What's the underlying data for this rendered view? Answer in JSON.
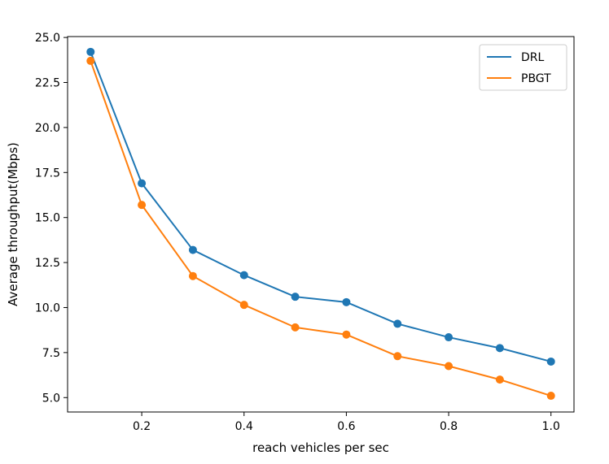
{
  "chart_data": {
    "type": "line",
    "x": [
      0.1,
      0.2,
      0.3,
      0.4,
      0.5,
      0.6,
      0.7,
      0.8,
      0.9,
      1.0
    ],
    "series": [
      {
        "name": "DRL",
        "color": "#1f77b4",
        "values": [
          24.2,
          16.9,
          13.2,
          11.8,
          10.6,
          10.3,
          9.1,
          8.35,
          7.75,
          7.0
        ]
      },
      {
        "name": "PBGT",
        "color": "#ff7f0e",
        "values": [
          23.7,
          15.7,
          11.75,
          10.15,
          8.9,
          8.5,
          7.3,
          6.75,
          6.0,
          5.1
        ]
      }
    ],
    "xlabel": "reach vehicles per sec",
    "ylabel": "Average throughput(Mbps)",
    "xlim": [
      0.055,
      1.045
    ],
    "ylim": [
      4.2,
      25.05
    ],
    "xticks": [
      0.2,
      0.4,
      0.6,
      0.8,
      1.0
    ],
    "xtick_labels": [
      "0.2",
      "0.4",
      "0.6",
      "0.8",
      "1.0"
    ],
    "yticks": [
      5.0,
      7.5,
      10.0,
      12.5,
      15.0,
      17.5,
      20.0,
      22.5,
      25.0
    ],
    "ytick_labels": [
      "5.0",
      "7.5",
      "10.0",
      "12.5",
      "15.0",
      "17.5",
      "20.0",
      "22.5",
      "25.0"
    ],
    "grid": false,
    "legend_position": "top-right"
  }
}
